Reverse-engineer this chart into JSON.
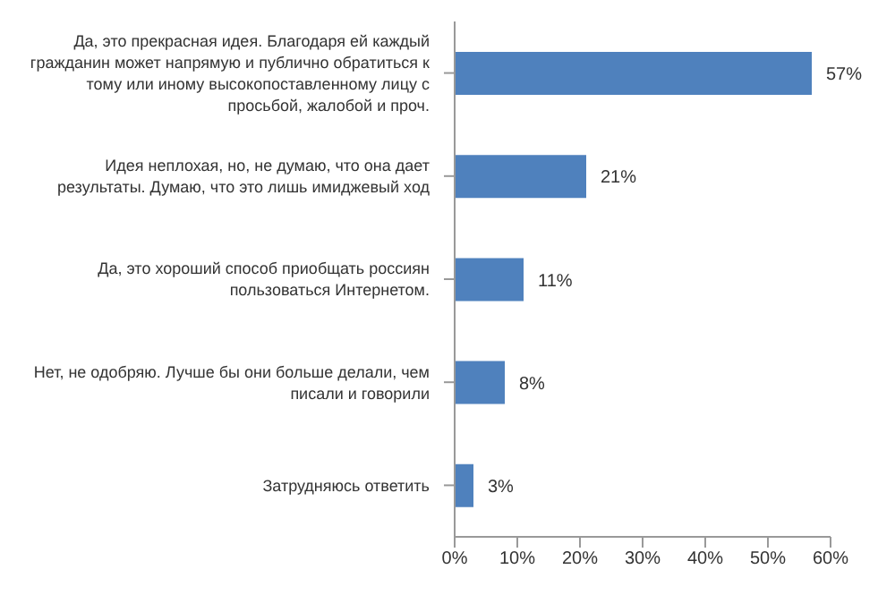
{
  "chart_data": {
    "type": "bar",
    "orientation": "horizontal",
    "categories": [
      "Да, это прекрасная идея. Благодаря ей каждый гражданин может напрямую и публично обратиться к тому или иному высокопоставленному лицу с просьбой, жалобой и проч.",
      "Идея неплохая, но, не думаю, что она дает результаты. Думаю, что это лишь имиджевый ход",
      "Да, это хороший способ приобщать россиян пользоваться Интернетом.",
      "Нет, не одобряю. Лучше бы они больше делали, чем писали и говорили",
      "Затрудняюсь ответить"
    ],
    "values": [
      57,
      21,
      11,
      8,
      3
    ],
    "value_labels": [
      "57%",
      "21%",
      "11%",
      "8%",
      "3%"
    ],
    "color": "#4f81bd",
    "xlim": [
      0,
      60
    ],
    "xticks": [
      {
        "value": 0,
        "label": "0%"
      },
      {
        "value": 10,
        "label": "10%"
      },
      {
        "value": 20,
        "label": "20%"
      },
      {
        "value": 30,
        "label": "30%"
      },
      {
        "value": 40,
        "label": "40%"
      },
      {
        "value": 50,
        "label": "50%"
      },
      {
        "value": 60,
        "label": "60%"
      }
    ],
    "grid": false,
    "legend": false
  }
}
